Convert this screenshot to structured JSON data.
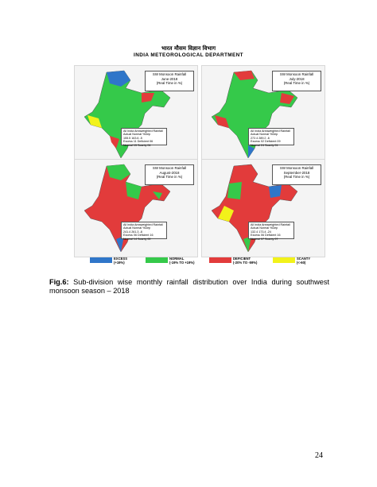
{
  "header": {
    "hindi": "भारत मौसम विज्ञान विभाग",
    "department": "INDIA METEOROLOGICAL DEPARTMENT"
  },
  "colors": {
    "excess": "#2f76c9",
    "normal": "#35c94a",
    "deficient": "#e23b3b",
    "scanty": "#f2f21a",
    "no_rain": "#ffffff"
  },
  "panels": [
    {
      "title": "SW Monsoon Rainfall",
      "period": "June-2018",
      "note": "(Real Time in %)",
      "stats": [
        "All India Areaweighted Rainfall",
        "Actual  Normal  %Dep",
        "155.5  163.6  -5",
        "Excess  11  Deficient  06",
        "Normal  15  Scanty  04"
      ]
    },
    {
      "title": "SW Monsoon Rainfall",
      "period": "July-2018",
      "note": "(Real Time in %)",
      "stats": [
        "All India Areaweighted Rainfall",
        "Actual  Normal  %Dep",
        "272.4  289.2  -6",
        "Excess  02  Deficient  09",
        "Normal  24  Scanty  01"
      ]
    },
    {
      "title": "SW Monsoon Rainfall",
      "period": "August-2018",
      "note": "(Real Time in %)",
      "stats": [
        "All India Areaweighted Rainfall",
        "Actual  Normal  %Dep",
        "241.4  261.3  -8",
        "Excess  06  Deficient  16",
        "Normal  14  Scanty  00"
      ]
    },
    {
      "title": "SW Monsoon Rainfall",
      "period": "September-2018",
      "note": "(Real Time in %)",
      "stats": [
        "All India Areaweighted Rainfall",
        "Actual  Normal  %Dep",
        "132.4  173.4  -24",
        "Excess  06  Deficient  16",
        "Normal  07  Scanty  07"
      ]
    }
  ],
  "legend": [
    {
      "label": "EXCESS",
      "range": "(+19%)",
      "color": "#2f76c9"
    },
    {
      "label": "NORMAL",
      "range": "(-19% TO +19%)",
      "color": "#35c94a"
    },
    {
      "label": "DEFICIENT",
      "range": "(-20% TO -59%)",
      "color": "#e23b3b"
    },
    {
      "label": "SCANTY",
      "range": "(<-60)",
      "color": "#f2f21a"
    }
  ],
  "caption": {
    "label": "Fig.6:",
    "text": " Sub-division wise monthly rainfall distribution over India during southwest monsoon season – 2018"
  },
  "page_number": "24"
}
